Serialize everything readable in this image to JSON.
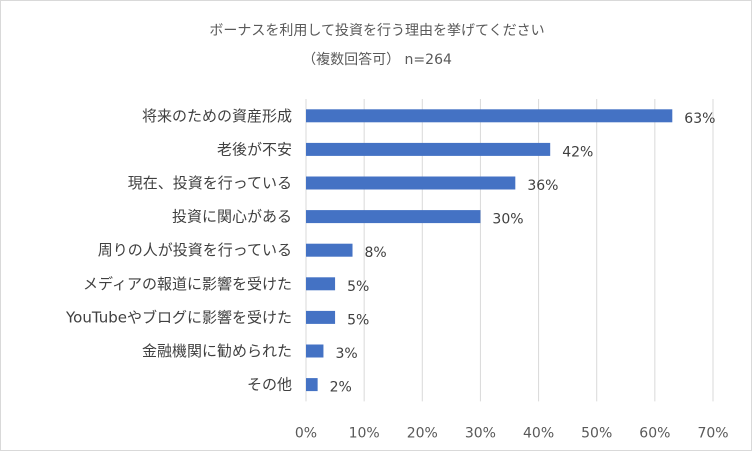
{
  "chart_data": {
    "type": "bar",
    "orientation": "horizontal",
    "title": "ボーナスを利用して投資を行う理由を挙げてください",
    "subtitle": "（複数回答可） n=264",
    "categories": [
      "将来のための資産形成",
      "老後が不安",
      "現在、投資を行っている",
      "投資に関心がある",
      "周りの人が投資を行っている",
      "メディアの報道に影響を受けた",
      "YouTubeやブログに影響を受けた",
      "金融機関に勧められた",
      "その他"
    ],
    "values": [
      63,
      42,
      36,
      30,
      8,
      5,
      5,
      3,
      2
    ],
    "value_labels": [
      "63%",
      "42%",
      "36%",
      "30%",
      "8%",
      "5%",
      "5%",
      "3%",
      "2%"
    ],
    "xlim": [
      0,
      70
    ],
    "xticks": [
      0,
      10,
      20,
      30,
      40,
      50,
      60,
      70
    ],
    "xtick_labels": [
      "0%",
      "10%",
      "20%",
      "30%",
      "40%",
      "50%",
      "60%",
      "70%"
    ],
    "grid": "vertical",
    "legend": "none",
    "colors": {
      "bar": "#4472c4",
      "grid": "#d9d9d9"
    }
  }
}
